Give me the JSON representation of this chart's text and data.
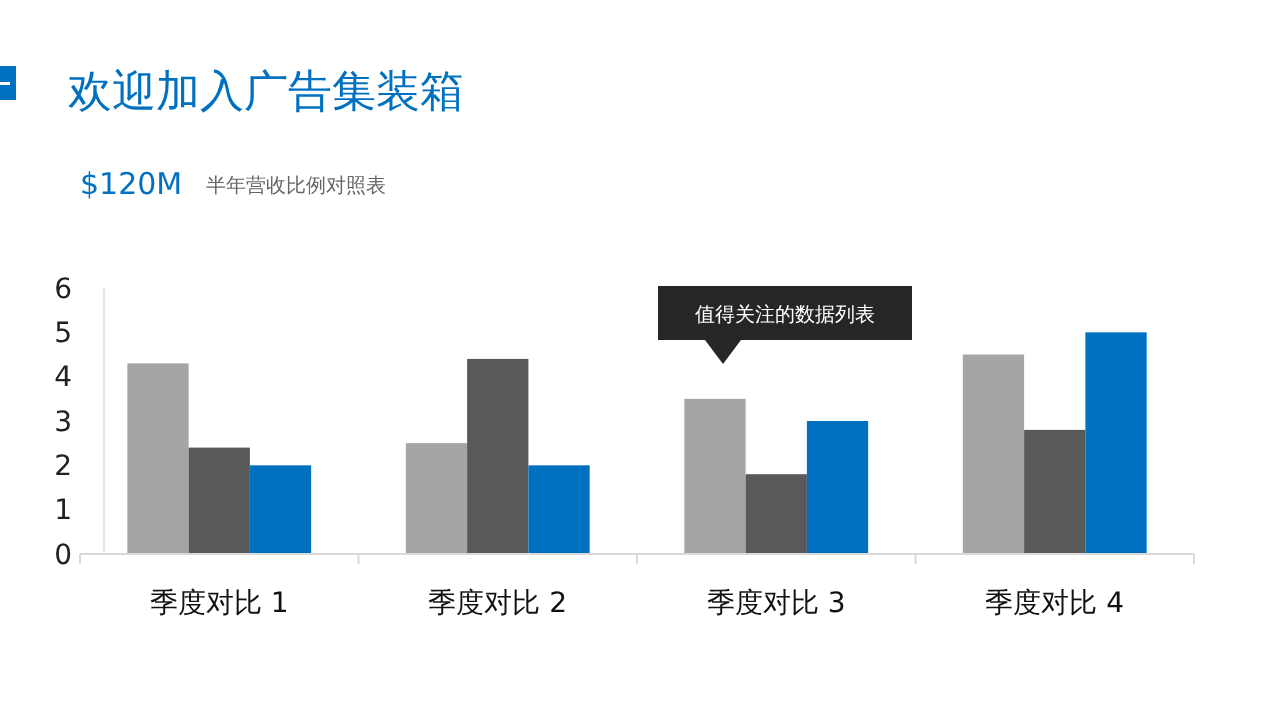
{
  "chart_data": {
    "type": "bar",
    "title": "欢迎加入广告集装箱",
    "subtitle": "$120M",
    "annotations": [
      "半年营收比例对照表",
      "值得关注的数据列表"
    ],
    "categories": [
      "季度对比 1",
      "季度对比 2",
      "季度对比 3",
      "季度对比 4"
    ],
    "series": [
      {
        "color": "#a5a5a5",
        "values": [
          4.3,
          2.5,
          3.5,
          4.5
        ]
      },
      {
        "color": "#595959",
        "values": [
          2.4,
          4.4,
          1.8,
          2.8
        ]
      },
      {
        "color": "#0070c0",
        "values": [
          2.0,
          2.0,
          3.0,
          5.0
        ]
      }
    ],
    "ylim": [
      0,
      6
    ],
    "yticks": [
      0,
      1,
      2,
      3,
      4,
      5,
      6
    ],
    "grid": false
  }
}
